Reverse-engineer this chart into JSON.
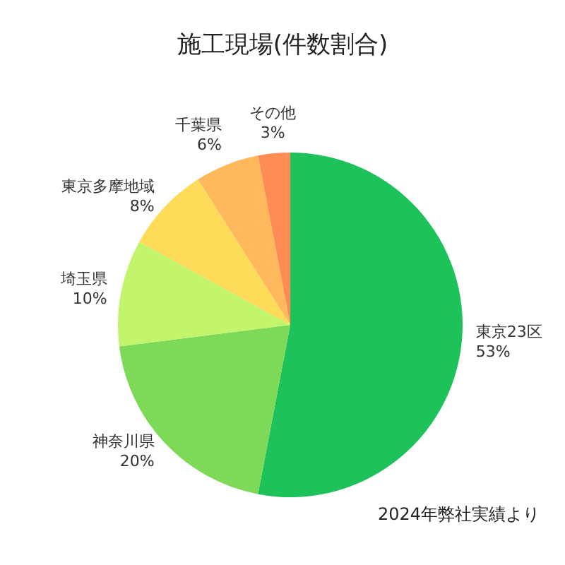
{
  "chart_data": {
    "type": "pie",
    "title": "施工現場(件数割合)",
    "categories": [
      "東京23区",
      "神奈川県",
      "埼玉県",
      "東京多摩地域",
      "千葉県",
      "その他"
    ],
    "values": [
      53,
      20,
      10,
      8,
      6,
      3
    ],
    "value_labels": [
      "53%",
      "20%",
      "10%",
      "8%",
      "6%",
      "3%"
    ],
    "colors": [
      "#1ec25a",
      "#7dd957",
      "#c2f46c",
      "#ffdb5a",
      "#ffb95c",
      "#ff8c55"
    ],
    "annotations": [
      "2024年弊社実績より"
    ],
    "legend": false
  }
}
